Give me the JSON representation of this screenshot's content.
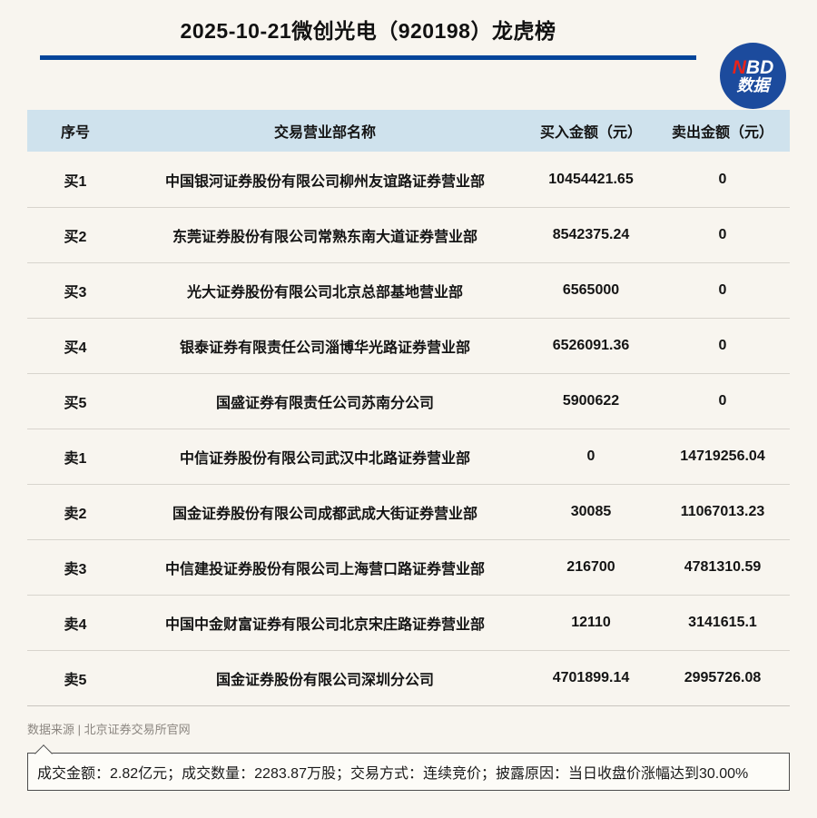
{
  "header": {
    "title": "2025-10-21微创光电（920198）龙虎榜",
    "underline_color": "#04459a",
    "logo": {
      "n": "N",
      "bd": "BD",
      "line2": "数据",
      "bg_color": "#1c4b9d",
      "n_color": "#e8231a"
    }
  },
  "table": {
    "header_bg": "#cfe2ed",
    "columns": [
      "序号",
      "交易营业部名称",
      "买入金额（元）",
      "卖出金额（元）"
    ],
    "rows": [
      {
        "no": "买1",
        "name": "中国银河证券股份有限公司柳州友谊路证券营业部",
        "buy": "10454421.65",
        "sell": "0"
      },
      {
        "no": "买2",
        "name": "东莞证券股份有限公司常熟东南大道证券营业部",
        "buy": "8542375.24",
        "sell": "0"
      },
      {
        "no": "买3",
        "name": "光大证券股份有限公司北京总部基地营业部",
        "buy": "6565000",
        "sell": "0"
      },
      {
        "no": "买4",
        "name": "银泰证券有限责任公司淄博华光路证券营业部",
        "buy": "6526091.36",
        "sell": "0"
      },
      {
        "no": "买5",
        "name": "国盛证券有限责任公司苏南分公司",
        "buy": "5900622",
        "sell": "0"
      },
      {
        "no": "卖1",
        "name": "中信证券股份有限公司武汉中北路证券营业部",
        "buy": "0",
        "sell": "14719256.04"
      },
      {
        "no": "卖2",
        "name": "国金证券股份有限公司成都武成大街证券营业部",
        "buy": "30085",
        "sell": "11067013.23"
      },
      {
        "no": "卖3",
        "name": "中信建投证券股份有限公司上海营口路证券营业部",
        "buy": "216700",
        "sell": "4781310.59"
      },
      {
        "no": "卖4",
        "name": "中国中金财富证券有限公司北京宋庄路证券营业部",
        "buy": "12110",
        "sell": "3141615.1"
      },
      {
        "no": "卖5",
        "name": "国金证券股份有限公司深圳分公司",
        "buy": "4701899.14",
        "sell": "2995726.08"
      }
    ]
  },
  "footer": {
    "source": "数据来源 | 北京证券交易所官网",
    "note": "成交金额：2.82亿元；成交数量：2283.87万股；交易方式：连续竞价；披露原因：当日收盘价涨幅达到30.00%"
  },
  "chart_data": {
    "type": "table",
    "title": "2025-10-21微创光电（920198）龙虎榜",
    "columns": [
      "序号",
      "交易营业部名称",
      "买入金额（元）",
      "卖出金额（元）"
    ],
    "rows": [
      [
        "买1",
        "中国银河证券股份有限公司柳州友谊路证券营业部",
        10454421.65,
        0
      ],
      [
        "买2",
        "东莞证券股份有限公司常熟东南大道证券营业部",
        8542375.24,
        0
      ],
      [
        "买3",
        "光大证券股份有限公司北京总部基地营业部",
        6565000,
        0
      ],
      [
        "买4",
        "银泰证券有限责任公司淄博华光路证券营业部",
        6526091.36,
        0
      ],
      [
        "买5",
        "国盛证券有限责任公司苏南分公司",
        5900622,
        0
      ],
      [
        "卖1",
        "中信证券股份有限公司武汉中北路证券营业部",
        0,
        14719256.04
      ],
      [
        "卖2",
        "国金证券股份有限公司成都武成大街证券营业部",
        30085,
        11067013.23
      ],
      [
        "卖3",
        "中信建投证券股份有限公司上海营口路证券营业部",
        216700,
        4781310.59
      ],
      [
        "卖4",
        "中国中金财富证券有限公司北京宋庄路证券营业部",
        12110,
        3141615.1
      ],
      [
        "卖5",
        "国金证券股份有限公司深圳分公司",
        4701899.14,
        2995726.08
      ]
    ],
    "summary": {
      "turnover": "2.82亿元",
      "volume": "2283.87万股",
      "trade_mode": "连续竞价",
      "disclosure_reason": "当日收盘价涨幅达到30.00%"
    },
    "source": "北京证券交易所官网"
  }
}
